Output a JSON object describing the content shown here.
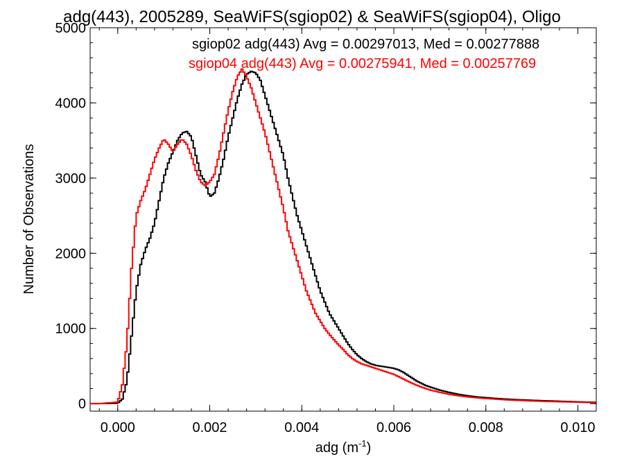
{
  "chart_data": {
    "type": "line",
    "title": "adg(443), 2005289, SeaWiFS(sgiop02) & SeaWiFS(sgiop04), Oligo",
    "xlabel": "adg (m",
    "xlabel_sup": "-1",
    "xlabel_close": ")",
    "ylabel": "Number of Observations",
    "xlim": [
      -0.0006,
      0.0104
    ],
    "ylim": [
      -100,
      5000
    ],
    "x_ticks": [
      0.0,
      0.002,
      0.004,
      0.006,
      0.008,
      0.01
    ],
    "x_tick_labels": [
      "0.000",
      "0.002",
      "0.004",
      "0.006",
      "0.008",
      "0.010"
    ],
    "y_ticks": [
      0,
      1000,
      2000,
      3000,
      4000,
      5000
    ],
    "y_tick_labels": [
      "0",
      "1000",
      "2000",
      "3000",
      "4000",
      "5000"
    ],
    "grid": false,
    "legend": "top-right",
    "series": [
      {
        "name": "sgiop02 adg(443) Avg = 0.00297013, Med = 0.00277888",
        "color": "#000000",
        "points": [
          [
            -0.0004,
            0
          ],
          [
            0.0,
            5
          ],
          [
            0.0001,
            60
          ],
          [
            0.0002,
            300
          ],
          [
            0.0003,
            900
          ],
          [
            0.0004,
            1500
          ],
          [
            0.0005,
            1850
          ],
          [
            0.0006,
            2050
          ],
          [
            0.0007,
            2200
          ],
          [
            0.0008,
            2400
          ],
          [
            0.0009,
            2700
          ],
          [
            0.001,
            3000
          ],
          [
            0.0011,
            3200
          ],
          [
            0.0012,
            3350
          ],
          [
            0.0013,
            3500
          ],
          [
            0.0014,
            3600
          ],
          [
            0.0015,
            3620
          ],
          [
            0.0016,
            3550
          ],
          [
            0.0017,
            3300
          ],
          [
            0.0018,
            3050
          ],
          [
            0.0019,
            2950
          ],
          [
            0.002,
            2750
          ],
          [
            0.0021,
            2800
          ],
          [
            0.0022,
            3000
          ],
          [
            0.0023,
            3250
          ],
          [
            0.0024,
            3550
          ],
          [
            0.0025,
            3800
          ],
          [
            0.0026,
            4050
          ],
          [
            0.0027,
            4250
          ],
          [
            0.0028,
            4380
          ],
          [
            0.0029,
            4420
          ],
          [
            0.003,
            4400
          ],
          [
            0.0031,
            4300
          ],
          [
            0.0032,
            4100
          ],
          [
            0.0033,
            3900
          ],
          [
            0.0034,
            3700
          ],
          [
            0.0035,
            3500
          ],
          [
            0.0036,
            3300
          ],
          [
            0.0037,
            3000
          ],
          [
            0.0038,
            2750
          ],
          [
            0.0039,
            2500
          ],
          [
            0.004,
            2300
          ],
          [
            0.0041,
            2100
          ],
          [
            0.0042,
            1900
          ],
          [
            0.0043,
            1700
          ],
          [
            0.0044,
            1500
          ],
          [
            0.0045,
            1350
          ],
          [
            0.0046,
            1200
          ],
          [
            0.0047,
            1100
          ],
          [
            0.0048,
            1000
          ],
          [
            0.0049,
            900
          ],
          [
            0.005,
            800
          ],
          [
            0.0051,
            720
          ],
          [
            0.0052,
            650
          ],
          [
            0.0053,
            600
          ],
          [
            0.0054,
            560
          ],
          [
            0.0055,
            530
          ],
          [
            0.0056,
            510
          ],
          [
            0.0057,
            500
          ],
          [
            0.0058,
            490
          ],
          [
            0.0059,
            480
          ],
          [
            0.006,
            470
          ],
          [
            0.0061,
            450
          ],
          [
            0.0062,
            420
          ],
          [
            0.0063,
            380
          ],
          [
            0.0064,
            340
          ],
          [
            0.0065,
            300
          ],
          [
            0.0066,
            270
          ],
          [
            0.0067,
            240
          ],
          [
            0.0068,
            220
          ],
          [
            0.0069,
            200
          ],
          [
            0.007,
            180
          ],
          [
            0.0072,
            150
          ],
          [
            0.0074,
            125
          ],
          [
            0.0076,
            105
          ],
          [
            0.0078,
            90
          ],
          [
            0.008,
            80
          ],
          [
            0.0082,
            70
          ],
          [
            0.0084,
            62
          ],
          [
            0.0086,
            55
          ],
          [
            0.0088,
            50
          ],
          [
            0.009,
            45
          ],
          [
            0.0092,
            40
          ],
          [
            0.0094,
            36
          ],
          [
            0.0096,
            32
          ],
          [
            0.0098,
            28
          ],
          [
            0.01,
            24
          ],
          [
            0.0102,
            20
          ],
          [
            0.0104,
            18
          ]
        ]
      },
      {
        "name": "sgiop04 adg(443) Avg = 0.00275941, Med = 0.00257769",
        "color": "#ff0000",
        "points": [
          [
            -0.0004,
            0
          ],
          [
            0.0,
            20
          ],
          [
            0.0001,
            250
          ],
          [
            0.0002,
            800
          ],
          [
            0.0003,
            1800
          ],
          [
            0.0004,
            2500
          ],
          [
            0.0005,
            2700
          ],
          [
            0.0006,
            2850
          ],
          [
            0.0007,
            3050
          ],
          [
            0.0008,
            3250
          ],
          [
            0.0009,
            3400
          ],
          [
            0.001,
            3520
          ],
          [
            0.0011,
            3450
          ],
          [
            0.0012,
            3350
          ],
          [
            0.0013,
            3450
          ],
          [
            0.0014,
            3520
          ],
          [
            0.0015,
            3450
          ],
          [
            0.0016,
            3300
          ],
          [
            0.0017,
            3100
          ],
          [
            0.0018,
            2950
          ],
          [
            0.0019,
            2900
          ],
          [
            0.002,
            2950
          ],
          [
            0.0021,
            3050
          ],
          [
            0.0022,
            3300
          ],
          [
            0.0023,
            3600
          ],
          [
            0.0024,
            3900
          ],
          [
            0.0025,
            4150
          ],
          [
            0.0026,
            4350
          ],
          [
            0.0027,
            4450
          ],
          [
            0.0028,
            4350
          ],
          [
            0.0029,
            4200
          ],
          [
            0.003,
            4000
          ],
          [
            0.0031,
            3800
          ],
          [
            0.0032,
            3600
          ],
          [
            0.0033,
            3350
          ],
          [
            0.0034,
            3100
          ],
          [
            0.0035,
            2850
          ],
          [
            0.0036,
            2600
          ],
          [
            0.0037,
            2300
          ],
          [
            0.0038,
            2100
          ],
          [
            0.0039,
            1900
          ],
          [
            0.004,
            1700
          ],
          [
            0.0041,
            1500
          ],
          [
            0.0042,
            1350
          ],
          [
            0.0043,
            1200
          ],
          [
            0.0044,
            1100
          ],
          [
            0.0045,
            1000
          ],
          [
            0.0046,
            920
          ],
          [
            0.0047,
            850
          ],
          [
            0.0048,
            780
          ],
          [
            0.0049,
            720
          ],
          [
            0.005,
            650
          ],
          [
            0.0051,
            600
          ],
          [
            0.0052,
            560
          ],
          [
            0.0053,
            530
          ],
          [
            0.0054,
            510
          ],
          [
            0.0055,
            490
          ],
          [
            0.0056,
            470
          ],
          [
            0.0057,
            450
          ],
          [
            0.0058,
            430
          ],
          [
            0.0059,
            410
          ],
          [
            0.006,
            390
          ],
          [
            0.0061,
            360
          ],
          [
            0.0062,
            330
          ],
          [
            0.0063,
            300
          ],
          [
            0.0064,
            270
          ],
          [
            0.0065,
            245
          ],
          [
            0.0066,
            220
          ],
          [
            0.0067,
            200
          ],
          [
            0.0068,
            180
          ],
          [
            0.0069,
            165
          ],
          [
            0.007,
            150
          ],
          [
            0.0072,
            125
          ],
          [
            0.0074,
            105
          ],
          [
            0.0076,
            90
          ],
          [
            0.0078,
            78
          ],
          [
            0.008,
            68
          ],
          [
            0.0082,
            60
          ],
          [
            0.0084,
            52
          ],
          [
            0.0086,
            46
          ],
          [
            0.0088,
            41
          ],
          [
            0.009,
            36
          ],
          [
            0.0092,
            32
          ],
          [
            0.0094,
            28
          ],
          [
            0.0096,
            25
          ],
          [
            0.0098,
            22
          ],
          [
            0.01,
            19
          ],
          [
            0.0102,
            16
          ],
          [
            0.0104,
            14
          ]
        ]
      }
    ]
  }
}
